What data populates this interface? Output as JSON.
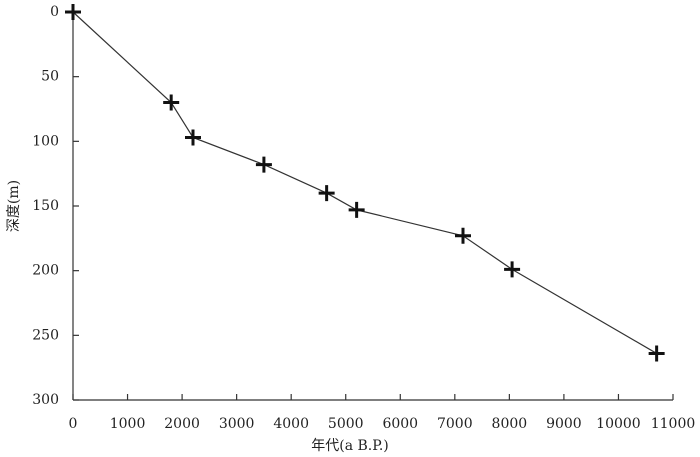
{
  "chart_data": {
    "type": "line",
    "x_label": "年代(a B.P.)",
    "y_label": "深度(m)",
    "x": [
      0,
      1800,
      2200,
      3500,
      4650,
      5200,
      7150,
      8050,
      10700
    ],
    "series": [
      {
        "color": "#333333",
        "values": [
          0,
          70,
          97,
          118,
          140,
          153,
          173,
          199,
          264
        ]
      }
    ],
    "marker": "+",
    "xlim": [
      0,
      11000
    ],
    "xticks": [
      0,
      1000,
      2000,
      3000,
      4000,
      5000,
      6000,
      7000,
      8000,
      9000,
      10000,
      11000
    ],
    "ylim": [
      0,
      300
    ],
    "yticks": [
      0,
      50,
      100,
      150,
      200,
      250,
      300
    ],
    "y_inverted": true
  }
}
